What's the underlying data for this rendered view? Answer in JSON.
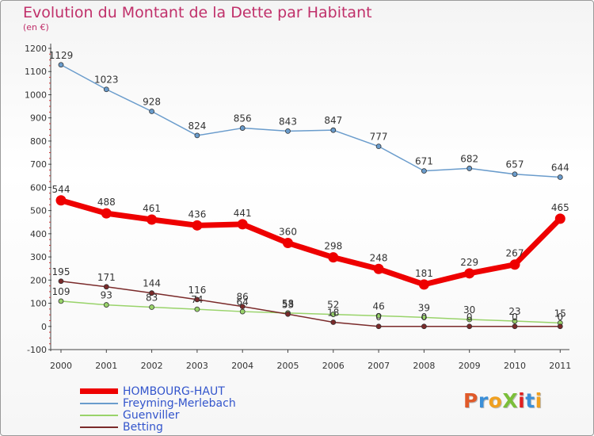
{
  "title": "Evolution du Montant de la Dette par Habitant",
  "subtitle": "(en €)",
  "logo": {
    "text": "ProXiti",
    "letter_colors": [
      "#e05a2a",
      "#3b8fd8",
      "#f0a020",
      "#7bbf3a",
      "#e02020",
      "#3b8fd8",
      "#f0a020"
    ]
  },
  "chart_data": {
    "type": "line",
    "title": "Evolution du Montant de la Dette par Habitant",
    "ylabel": "(en €)",
    "ylim": [
      -100,
      1200
    ],
    "yticks": [
      -100,
      0,
      100,
      200,
      300,
      400,
      500,
      600,
      700,
      800,
      900,
      1000,
      1100,
      1200
    ],
    "x": [
      "2000",
      "2001",
      "2002",
      "2003",
      "2004",
      "2005",
      "2006",
      "2007",
      "2008",
      "2009",
      "2010",
      "2011"
    ],
    "grid": false,
    "legend_position": "bottom-left",
    "series": [
      {
        "name": "Freyming-Merlebach",
        "color": "#6a9ccc",
        "values": [
          1129,
          1023,
          928,
          824,
          856,
          843,
          847,
          777,
          671,
          682,
          657,
          644
        ]
      },
      {
        "name": "Guenviller",
        "color": "#99d36a",
        "values": [
          109,
          93,
          83,
          74,
          64,
          58,
          52,
          46,
          39,
          30,
          23,
          15
        ]
      },
      {
        "name": "Betting",
        "color": "#7a2a2a",
        "values": [
          195,
          171,
          144,
          116,
          86,
          53,
          18,
          0,
          0,
          0,
          0,
          0
        ]
      },
      {
        "name": "HOMBOURG-HAUT",
        "color": "#ee0000",
        "values": [
          544,
          488,
          461,
          436,
          441,
          360,
          298,
          248,
          181,
          229,
          267,
          465
        ]
      }
    ],
    "legend_order": [
      "HOMBOURG-HAUT",
      "Freyming-Merlebach",
      "Guenviller",
      "Betting"
    ]
  }
}
